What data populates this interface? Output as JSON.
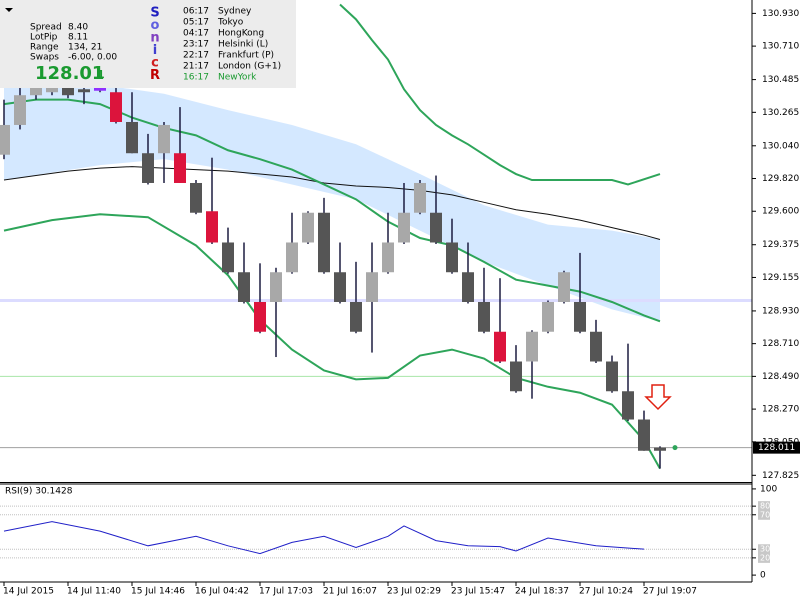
{
  "info_panel": {
    "stats": [
      [
        "Spread",
        "8.40"
      ],
      [
        "LotPip",
        "8.11"
      ],
      [
        "Range",
        "134, 21"
      ],
      [
        "Swaps",
        "-6.00, 0.00"
      ]
    ],
    "price": "128.01",
    "price_suffix": "1",
    "logo": [
      "S",
      "o",
      "n",
      "i",
      "c",
      "R"
    ],
    "logo_colors": [
      "#2020c0",
      "#6060e0",
      "#8040c0",
      "#4040d0",
      "#d02020",
      "#c00000"
    ],
    "sessions": [
      [
        "06:17",
        "Sydney"
      ],
      [
        "05:17",
        "Tokyo"
      ],
      [
        "04:17",
        "HongKong"
      ],
      [
        "23:17",
        "Helsinki  (L)"
      ],
      [
        "22:17",
        "Frankfurt  (P)"
      ],
      [
        "21:17",
        "London  (G+1)"
      ],
      [
        "16:17",
        "NewYork"
      ]
    ]
  },
  "chart_data": [
    {
      "type": "candlestick",
      "categories": [
        "14 Jul 2015",
        null,
        null,
        null,
        "14 Jul 11:40",
        null,
        null,
        null,
        "15 Jul 14:46",
        null,
        null,
        null,
        "16 Jul 04:42",
        null,
        null,
        null,
        "17 Jul 17:03",
        null,
        null,
        null,
        "21 Jul 16:07",
        null,
        null,
        null,
        "23 Jul 02:29",
        null,
        null,
        null,
        "23 Jul 15:47",
        null,
        null,
        null,
        "24 Jul 18:37",
        null,
        null,
        null,
        "27 Jul 10:24",
        null,
        null,
        null,
        "27 Jul 19:07",
        null
      ],
      "open": [
        129.98,
        130.18,
        130.38,
        130.4,
        130.45,
        130.42,
        130.43,
        130.4,
        130.2,
        129.99,
        129.99,
        129.99,
        129.79,
        129.6,
        129.39,
        129.19,
        128.99,
        128.99,
        129.19,
        129.39,
        129.59,
        129.19,
        128.99,
        128.99,
        129.19,
        129.39,
        129.59,
        129.59,
        129.39,
        129.19,
        128.99,
        128.79,
        128.59,
        128.59,
        128.79,
        128.99,
        128.99,
        128.79,
        128.59,
        128.39,
        128.2,
        127.99
      ],
      "high": [
        130.35,
        130.43,
        130.5,
        130.48,
        130.48,
        130.45,
        130.44,
        130.43,
        130.4,
        130.12,
        130.2,
        130.3,
        129.81,
        129.96,
        129.49,
        129.39,
        129.25,
        129.22,
        129.59,
        129.6,
        129.69,
        129.39,
        129.26,
        129.39,
        129.59,
        129.79,
        129.81,
        129.84,
        129.55,
        129.39,
        129.22,
        129.15,
        128.7,
        128.8,
        129.0,
        129.2,
        129.32,
        128.87,
        128.63,
        128.71,
        128.26,
        128.02
      ],
      "low": [
        129.95,
        130.15,
        130.35,
        130.38,
        130.36,
        130.32,
        130.4,
        130.19,
        129.99,
        129.78,
        129.79,
        129.79,
        129.58,
        129.38,
        129.18,
        128.98,
        128.78,
        128.62,
        129.18,
        129.38,
        129.18,
        128.98,
        128.78,
        128.65,
        129.18,
        129.38,
        129.58,
        129.38,
        129.18,
        128.98,
        128.78,
        128.58,
        128.38,
        128.34,
        128.78,
        128.98,
        128.78,
        128.58,
        128.38,
        128.19,
        127.99,
        127.87
      ],
      "close": [
        130.18,
        130.38,
        130.45,
        130.45,
        130.38,
        130.4,
        130.41,
        130.2,
        129.99,
        129.79,
        130.18,
        129.79,
        129.59,
        129.39,
        129.19,
        128.99,
        128.79,
        129.19,
        129.39,
        129.59,
        129.19,
        128.99,
        128.79,
        129.19,
        129.39,
        129.59,
        129.79,
        129.39,
        129.19,
        128.99,
        128.79,
        128.59,
        128.39,
        128.79,
        128.99,
        129.19,
        128.79,
        128.59,
        128.39,
        128.2,
        127.99,
        128.011
      ],
      "colors": [
        "#a8a8a8",
        "#a8a8a8",
        "#a8a8a8",
        "#a8a8a8",
        "#555555",
        "#555555",
        "#9030ff",
        "#dc143c",
        "#555555",
        "#555555",
        "#a8a8a8",
        "#dc143c",
        "#555555",
        "#dc143c",
        "#555555",
        "#555555",
        "#dc143c",
        "#a8a8a8",
        "#a8a8a8",
        "#a8a8a8",
        "#555555",
        "#555555",
        "#555555",
        "#a8a8a8",
        "#a8a8a8",
        "#a8a8a8",
        "#a8a8a8",
        "#555555",
        "#555555",
        "#555555",
        "#555555",
        "#dc143c",
        "#555555",
        "#a8a8a8",
        "#a8a8a8",
        "#a8a8a8",
        "#555555",
        "#555555",
        "#555555",
        "#555555",
        "#555555",
        "#555555"
      ],
      "wick_color": "#1c1c40",
      "band": {
        "color": "#cfe5ff",
        "x": [
          0,
          6,
          10,
          14,
          18,
          22,
          26,
          30,
          34,
          38,
          41
        ],
        "upper": [
          130.45,
          130.45,
          130.39,
          130.28,
          130.18,
          130.05,
          129.85,
          129.64,
          129.51,
          129.47,
          129.41
        ],
        "lower": [
          129.81,
          129.91,
          129.95,
          129.88,
          129.78,
          129.68,
          129.47,
          129.26,
          129.1,
          128.94,
          128.86
        ]
      },
      "overlays": [
        {
          "color": "#111111",
          "width": 1,
          "x": [
            0,
            2,
            4,
            6,
            8,
            10,
            12,
            14,
            16,
            18,
            20,
            22,
            24,
            26,
            28,
            30,
            32,
            34,
            36,
            38,
            40,
            41
          ],
          "values": [
            129.81,
            129.84,
            129.87,
            129.89,
            129.9,
            129.89,
            129.88,
            129.87,
            129.85,
            129.83,
            129.79,
            129.77,
            129.76,
            129.74,
            129.71,
            129.66,
            129.61,
            129.58,
            129.54,
            129.49,
            129.44,
            129.41
          ]
        },
        {
          "color": "#2ea55a",
          "width": 2,
          "x": [
            21,
            22,
            23,
            24,
            25,
            26,
            27,
            28,
            29,
            30,
            31,
            32,
            33,
            36,
            38,
            39,
            41
          ],
          "values": [
            130.99,
            130.89,
            130.75,
            130.62,
            130.42,
            130.28,
            130.18,
            130.11,
            130.05,
            129.98,
            129.91,
            129.85,
            129.81,
            129.81,
            129.81,
            129.78,
            129.85
          ]
        },
        {
          "color": "#2ea55a",
          "width": 2,
          "x": [
            0,
            2,
            4,
            6,
            8,
            10,
            12,
            14,
            16,
            18,
            20,
            22,
            24,
            26,
            28,
            30,
            32,
            34,
            36,
            38,
            40,
            41
          ],
          "values": [
            130.32,
            130.35,
            130.35,
            130.32,
            130.23,
            130.16,
            130.11,
            130.01,
            129.95,
            129.88,
            129.78,
            129.68,
            129.53,
            129.42,
            129.37,
            129.26,
            129.14,
            129.1,
            129.06,
            128.99,
            128.9,
            128.86
          ]
        },
        {
          "color": "#2ea55a",
          "width": 2,
          "x": [
            0,
            3,
            6,
            9,
            12,
            14,
            16,
            18,
            20,
            22,
            24,
            26,
            28,
            30,
            32,
            34,
            36,
            38,
            40,
            41
          ],
          "values": [
            129.47,
            129.54,
            129.58,
            129.56,
            129.37,
            129.17,
            128.87,
            128.67,
            128.53,
            128.47,
            128.48,
            128.63,
            128.67,
            128.61,
            128.48,
            128.42,
            128.38,
            128.3,
            128.06,
            127.87
          ]
        }
      ],
      "levels": [
        {
          "value": 129.0,
          "color": "#dcdcff"
        },
        {
          "value": 128.49,
          "color": "#a8e6a8"
        },
        {
          "value": 128.011,
          "color": "#a0a0a0"
        }
      ],
      "current_price": 128.011,
      "ylim": [
        127.78,
        131.02
      ],
      "yticks": [
        130.93,
        130.71,
        130.485,
        130.265,
        130.04,
        129.82,
        129.6,
        129.375,
        129.155,
        128.93,
        128.71,
        128.49,
        128.27,
        128.05,
        127.825
      ],
      "ytick_labels": [
        "130.930",
        "130.710",
        "130.485",
        "130.265",
        "130.040",
        "129.820",
        "129.600",
        "129.375",
        "129.155",
        "128.930",
        "128.710",
        "128.490",
        "128.270",
        "128.050",
        "127.825"
      ]
    },
    {
      "type": "line",
      "title": "RSI(9) 30.1428",
      "ylim": [
        -8,
        105.7
      ],
      "yticks": [
        0,
        20,
        30,
        70,
        80,
        100
      ],
      "levels": [
        20,
        30,
        70,
        80
      ],
      "series": [
        {
          "color": "#2020c8",
          "x": [
            0,
            3,
            6,
            9,
            12,
            14,
            16,
            18,
            20,
            22,
            24,
            25,
            27,
            29,
            31,
            32,
            34,
            37,
            40
          ],
          "values": [
            51,
            62,
            51,
            34,
            45,
            34,
            25,
            38,
            45,
            32,
            45,
            57,
            40,
            34,
            33,
            28,
            43,
            34,
            30.1428
          ]
        }
      ]
    }
  ]
}
